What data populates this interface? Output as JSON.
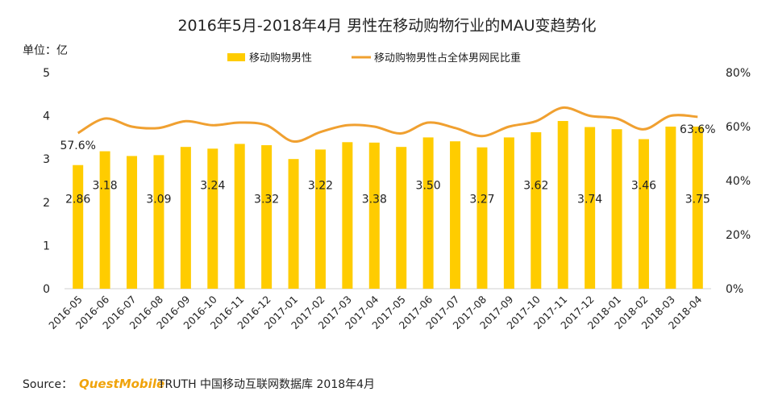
{
  "chart_data": {
    "type": "bar",
    "title": "2016年5月-2018年4月 男性在移动购物行业的MAU变趋势化",
    "unit_label": "单位：亿",
    "categories": [
      "2016-05",
      "2016-06",
      "2016-07",
      "2016-08",
      "2016-09",
      "2016-10",
      "2016-11",
      "2016-12",
      "2017-01",
      "2017-02",
      "2017-03",
      "2017-04",
      "2017-05",
      "2017-06",
      "2017-07",
      "2017-08",
      "2017-09",
      "2017-10",
      "2017-11",
      "2017-12",
      "2018-01",
      "2018-02",
      "2018-03",
      "2018-04"
    ],
    "series": [
      {
        "name": "移动购物男性",
        "type": "bar",
        "axis": "left",
        "color": "#FFCC00",
        "values": [
          2.86,
          3.18,
          3.07,
          3.09,
          3.28,
          3.24,
          3.35,
          3.32,
          3.0,
          3.22,
          3.39,
          3.38,
          3.28,
          3.5,
          3.41,
          3.27,
          3.5,
          3.62,
          3.88,
          3.74,
          3.69,
          3.46,
          3.75,
          3.75
        ]
      },
      {
        "name": "移动购物男性占全体男网民比重",
        "type": "line",
        "axis": "right",
        "color": "#F0A030",
        "values": [
          57.6,
          63.0,
          60.0,
          59.5,
          62.0,
          60.5,
          61.5,
          60.5,
          54.5,
          58.0,
          60.5,
          60.0,
          57.5,
          61.5,
          59.5,
          56.5,
          60.0,
          62.0,
          67.0,
          64.0,
          63.0,
          59.0,
          64.0,
          63.6
        ]
      }
    ],
    "bar_labels": [
      {
        "index": 0,
        "text": "2.86"
      },
      {
        "index": 1,
        "text": "3.18"
      },
      {
        "index": 3,
        "text": "3.09"
      },
      {
        "index": 5,
        "text": "3.24"
      },
      {
        "index": 7,
        "text": "3.32"
      },
      {
        "index": 9,
        "text": "3.22"
      },
      {
        "index": 11,
        "text": "3.38"
      },
      {
        "index": 13,
        "text": "3.50"
      },
      {
        "index": 15,
        "text": "3.27"
      },
      {
        "index": 17,
        "text": "3.62"
      },
      {
        "index": 19,
        "text": "3.74"
      },
      {
        "index": 21,
        "text": "3.46"
      },
      {
        "index": 23,
        "text": "3.75"
      }
    ],
    "line_labels": [
      {
        "index": 0,
        "text": "57.6%"
      },
      {
        "index": 23,
        "text": "63.6%"
      }
    ],
    "y_left": {
      "min": 0,
      "max": 5,
      "ticks": [
        "0",
        "1",
        "2",
        "3",
        "4",
        "5"
      ]
    },
    "y_right": {
      "min": 0,
      "max": 80,
      "ticks": [
        "0%",
        "20%",
        "40%",
        "60%",
        "80%"
      ]
    },
    "grid": false,
    "legend_position": "top-center"
  },
  "footer": {
    "source_label": "Source：",
    "brand": "QuestMobile",
    "source_text": "TRUTH 中国移动互联网数据库 2018年4月"
  }
}
